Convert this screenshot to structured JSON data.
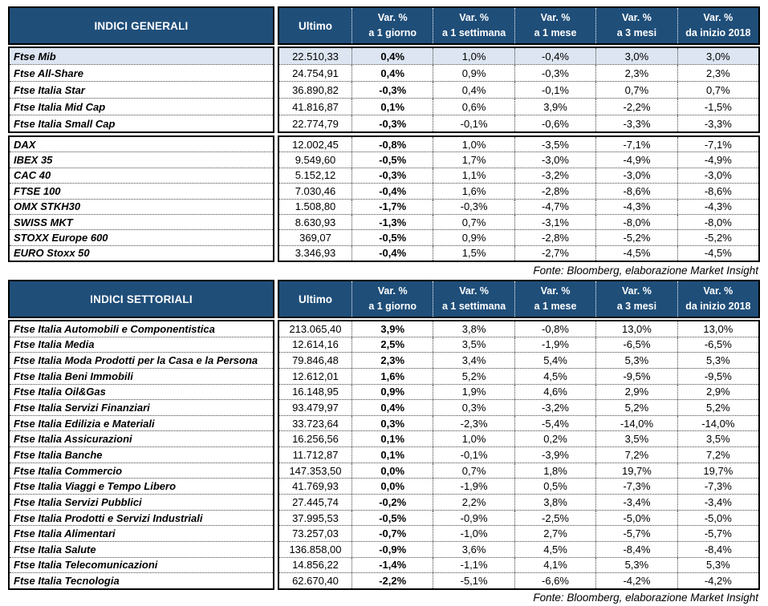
{
  "colors": {
    "header_bg": "#1F4E79",
    "header_text": "#FFFFFF",
    "highlight_row": "#DCE5F1",
    "block_border": "#000000"
  },
  "columns": {
    "ultimo": "Ultimo",
    "vars": [
      {
        "line1": "Var. %",
        "line2": "a 1 giorno"
      },
      {
        "line1": "Var. %",
        "line2": "a 1 settimana"
      },
      {
        "line1": "Var. %",
        "line2": "a 1 mese"
      },
      {
        "line1": "Var. %",
        "line2": "a 3 mesi"
      },
      {
        "line1": "Var. %",
        "line2": "da inizio 2018"
      }
    ]
  },
  "table1": {
    "title": "INDICI GENERALI",
    "fonte": "Fonte: Bloomberg, elaborazione Market Insight",
    "groups": [
      [
        {
          "name": "Ftse Mib",
          "ultimo": "22.510,33",
          "d1": "0,4%",
          "w1": "1,0%",
          "m1": "-0,4%",
          "m3": "3,0%",
          "y18": "3,0%",
          "highlight": true
        },
        {
          "name": "Ftse All-Share",
          "ultimo": "24.754,91",
          "d1": "0,4%",
          "w1": "0,9%",
          "m1": "-0,3%",
          "m3": "2,3%",
          "y18": "2,3%"
        },
        {
          "name": "Ftse Italia Star",
          "ultimo": "36.890,82",
          "d1": "-0,3%",
          "w1": "0,4%",
          "m1": "-0,1%",
          "m3": "0,7%",
          "y18": "0,7%"
        },
        {
          "name": "Ftse Italia Mid Cap",
          "ultimo": "41.816,87",
          "d1": "0,1%",
          "w1": "0,6%",
          "m1": "3,9%",
          "m3": "-2,2%",
          "y18": "-1,5%"
        },
        {
          "name": "Ftse Italia Small Cap",
          "ultimo": "22.774,79",
          "d1": "-0,3%",
          "w1": "-0,1%",
          "m1": "-0,6%",
          "m3": "-3,3%",
          "y18": "-3,3%"
        }
      ],
      [
        {
          "name": "DAX",
          "ultimo": "12.002,45",
          "d1": "-0,8%",
          "w1": "1,0%",
          "m1": "-3,5%",
          "m3": "-7,1%",
          "y18": "-7,1%"
        },
        {
          "name": "IBEX 35",
          "ultimo": "9.549,60",
          "d1": "-0,5%",
          "w1": "1,7%",
          "m1": "-3,0%",
          "m3": "-4,9%",
          "y18": "-4,9%"
        },
        {
          "name": "CAC 40",
          "ultimo": "5.152,12",
          "d1": "-0,3%",
          "w1": "1,1%",
          "m1": "-3,2%",
          "m3": "-3,0%",
          "y18": "-3,0%"
        },
        {
          "name": "FTSE 100",
          "ultimo": "7.030,46",
          "d1": "-0,4%",
          "w1": "1,6%",
          "m1": "-2,8%",
          "m3": "-8,6%",
          "y18": "-8,6%"
        },
        {
          "name": "OMX STKH30",
          "ultimo": "1.508,80",
          "d1": "-1,7%",
          "w1": "-0,3%",
          "m1": "-4,7%",
          "m3": "-4,3%",
          "y18": "-4,3%"
        },
        {
          "name": "SWISS MKT",
          "ultimo": "8.630,93",
          "d1": "-1,3%",
          "w1": "0,7%",
          "m1": "-3,1%",
          "m3": "-8,0%",
          "y18": "-8,0%"
        },
        {
          "name": "STOXX Europe 600",
          "ultimo": "369,07",
          "d1": "-0,5%",
          "w1": "0,9%",
          "m1": "-2,8%",
          "m3": "-5,2%",
          "y18": "-5,2%"
        },
        {
          "name": "EURO Stoxx 50",
          "ultimo": "3.346,93",
          "d1": "-0,4%",
          "w1": "1,5%",
          "m1": "-2,7%",
          "m3": "-4,5%",
          "y18": "-4,5%"
        }
      ]
    ]
  },
  "table2": {
    "title": "INDICI SETTORIALI",
    "fonte": "Fonte: Bloomberg, elaborazione Market Insight",
    "rows": [
      {
        "name": "Ftse Italia Automobili e Componentistica",
        "ultimo": "213.065,40",
        "d1": "3,9%",
        "w1": "3,8%",
        "m1": "-0,8%",
        "m3": "13,0%",
        "y18": "13,0%"
      },
      {
        "name": "Ftse Italia Media",
        "ultimo": "12.614,16",
        "d1": "2,5%",
        "w1": "3,5%",
        "m1": "-1,9%",
        "m3": "-6,5%",
        "y18": "-6,5%"
      },
      {
        "name": "Ftse Italia Moda Prodotti per la Casa e la Persona",
        "ultimo": "79.846,48",
        "d1": "2,3%",
        "w1": "3,4%",
        "m1": "5,4%",
        "m3": "5,3%",
        "y18": "5,3%"
      },
      {
        "name": "Ftse Italia Beni Immobili",
        "ultimo": "12.612,01",
        "d1": "1,6%",
        "w1": "5,2%",
        "m1": "4,5%",
        "m3": "-9,5%",
        "y18": "-9,5%"
      },
      {
        "name": "Ftse Italia Oil&Gas",
        "ultimo": "16.148,95",
        "d1": "0,9%",
        "w1": "1,9%",
        "m1": "4,6%",
        "m3": "2,9%",
        "y18": "2,9%"
      },
      {
        "name": "Ftse Italia Servizi Finanziari",
        "ultimo": "93.479,97",
        "d1": "0,4%",
        "w1": "0,3%",
        "m1": "-3,2%",
        "m3": "5,2%",
        "y18": "5,2%"
      },
      {
        "name": "Ftse Italia Edilizia e Materiali",
        "ultimo": "33.723,64",
        "d1": "0,3%",
        "w1": "-2,3%",
        "m1": "-5,4%",
        "m3": "-14,0%",
        "y18": "-14,0%"
      },
      {
        "name": "Ftse Italia Assicurazioni",
        "ultimo": "16.256,56",
        "d1": "0,1%",
        "w1": "1,0%",
        "m1": "0,2%",
        "m3": "3,5%",
        "y18": "3,5%"
      },
      {
        "name": "Ftse Italia Banche",
        "ultimo": "11.712,87",
        "d1": "0,1%",
        "w1": "-0,1%",
        "m1": "-3,9%",
        "m3": "7,2%",
        "y18": "7,2%"
      },
      {
        "name": "Ftse Italia Commercio",
        "ultimo": "147.353,50",
        "d1": "0,0%",
        "w1": "0,7%",
        "m1": "1,8%",
        "m3": "19,7%",
        "y18": "19,7%"
      },
      {
        "name": "Ftse Italia Viaggi e Tempo Libero",
        "ultimo": "41.769,93",
        "d1": "0,0%",
        "w1": "-1,9%",
        "m1": "0,5%",
        "m3": "-7,3%",
        "y18": "-7,3%"
      },
      {
        "name": "Ftse Italia Servizi Pubblici",
        "ultimo": "27.445,74",
        "d1": "-0,2%",
        "w1": "2,2%",
        "m1": "3,8%",
        "m3": "-3,4%",
        "y18": "-3,4%"
      },
      {
        "name": "Ftse Italia Prodotti e Servizi Industriali",
        "ultimo": "37.995,53",
        "d1": "-0,5%",
        "w1": "-0,9%",
        "m1": "-2,5%",
        "m3": "-5,0%",
        "y18": "-5,0%"
      },
      {
        "name": "Ftse Italia Alimentari",
        "ultimo": "73.257,03",
        "d1": "-0,7%",
        "w1": "-1,0%",
        "m1": "2,7%",
        "m3": "-5,7%",
        "y18": "-5,7%"
      },
      {
        "name": "Ftse Italia Salute",
        "ultimo": "136.858,00",
        "d1": "-0,9%",
        "w1": "3,6%",
        "m1": "4,5%",
        "m3": "-8,4%",
        "y18": "-8,4%"
      },
      {
        "name": "Ftse Italia Telecomunicazioni",
        "ultimo": "14.856,22",
        "d1": "-1,4%",
        "w1": "-1,1%",
        "m1": "4,1%",
        "m3": "5,3%",
        "y18": "5,3%"
      },
      {
        "name": "Ftse Italia Tecnologia",
        "ultimo": "62.670,40",
        "d1": "-2,2%",
        "w1": "-5,1%",
        "m1": "-6,6%",
        "m3": "-4,2%",
        "y18": "-4,2%"
      }
    ]
  }
}
